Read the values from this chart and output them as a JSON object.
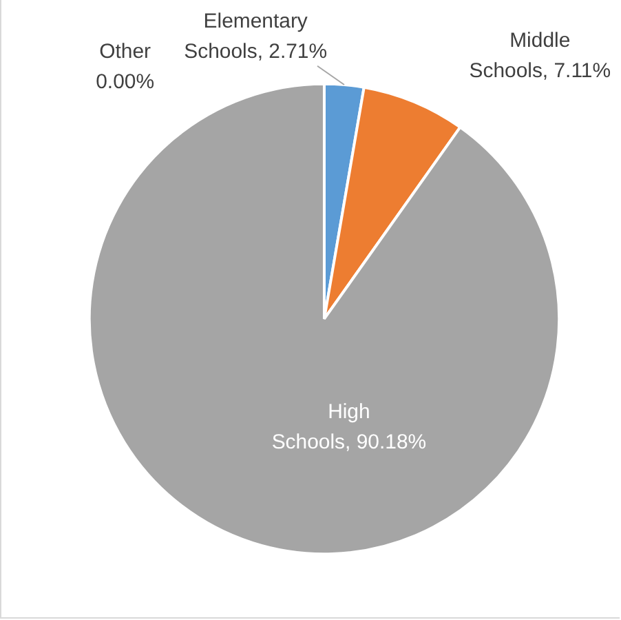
{
  "chart_data": {
    "type": "pie",
    "categories": [
      "Elementary Schools",
      "Middle Schools",
      "High Schools",
      "Other"
    ],
    "values": [
      2.71,
      7.11,
      90.18,
      0
    ],
    "value_labels": [
      "2.71%",
      "7.11%",
      "90.18%",
      "0.00%"
    ],
    "colors": [
      "#5b9bd5",
      "#ed7d31",
      "#a5a5a5",
      "#ffc000"
    ],
    "legend": false
  }
}
